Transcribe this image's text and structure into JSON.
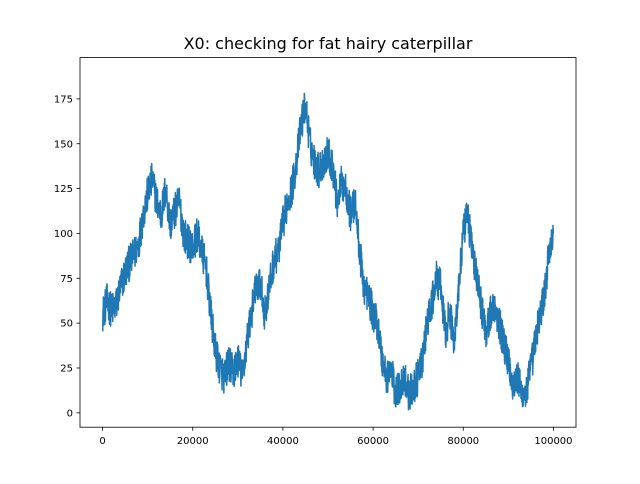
{
  "chart_data": {
    "type": "line",
    "title": "X0: checking for fat hairy caterpillar",
    "xlabel": "",
    "ylabel": "",
    "xlim": [
      -5000,
      105000
    ],
    "ylim": [
      -8,
      198
    ],
    "grid": false,
    "legend": "none",
    "x_ticks": [
      0,
      20000,
      40000,
      60000,
      80000,
      100000
    ],
    "x_tick_labels": [
      "0",
      "20000",
      "40000",
      "60000",
      "80000",
      "100000"
    ],
    "y_ticks": [
      0,
      25,
      50,
      75,
      100,
      125,
      150,
      175
    ],
    "y_tick_labels": [
      "0",
      "25",
      "50",
      "75",
      "100",
      "125",
      "150",
      "175"
    ],
    "series": [
      {
        "color": "#1f77b4",
        "noise_amplitude": 10,
        "x": [
          0,
          1000,
          2000,
          3000,
          4000,
          5000,
          6000,
          7000,
          8000,
          9000,
          10000,
          11000,
          12000,
          13000,
          14000,
          15000,
          16000,
          17000,
          18000,
          19000,
          20000,
          21000,
          22000,
          23000,
          24000,
          25000,
          26000,
          27000,
          28000,
          29000,
          30000,
          31000,
          32000,
          33000,
          34000,
          35000,
          36000,
          37000,
          38000,
          39000,
          40000,
          41000,
          42000,
          43000,
          44000,
          45000,
          46000,
          47000,
          48000,
          49000,
          50000,
          51000,
          52000,
          53000,
          54000,
          55000,
          56000,
          57000,
          58000,
          59000,
          60000,
          61000,
          62000,
          63000,
          64000,
          65000,
          66000,
          67000,
          68000,
          69000,
          70000,
          71000,
          72000,
          73000,
          74000,
          75000,
          76000,
          77000,
          78000,
          79000,
          80000,
          81000,
          82000,
          83000,
          84000,
          85000,
          86000,
          87000,
          88000,
          89000,
          90000,
          91000,
          92000,
          93000,
          94000,
          95000,
          96000,
          97000,
          98000,
          99000,
          100000
        ],
        "y": [
          55,
          62,
          57,
          60,
          70,
          78,
          84,
          88,
          95,
          110,
          122,
          130,
          118,
          110,
          125,
          105,
          112,
          118,
          100,
          95,
          92,
          100,
          90,
          80,
          55,
          35,
          25,
          20,
          28,
          22,
          30,
          20,
          40,
          55,
          70,
          72,
          55,
          70,
          85,
          90,
          105,
          118,
          125,
          140,
          160,
          172,
          150,
          140,
          135,
          140,
          145,
          138,
          118,
          128,
          125,
          110,
          118,
          90,
          70,
          65,
          55,
          50,
          30,
          20,
          25,
          10,
          15,
          20,
          10,
          15,
          20,
          30,
          50,
          60,
          75,
          70,
          45,
          55,
          40,
          70,
          100,
          110,
          90,
          75,
          60,
          45,
          55,
          60,
          50,
          38,
          30,
          15,
          20,
          10,
          12,
          25,
          40,
          55,
          65,
          90,
          100
        ]
      }
    ]
  }
}
